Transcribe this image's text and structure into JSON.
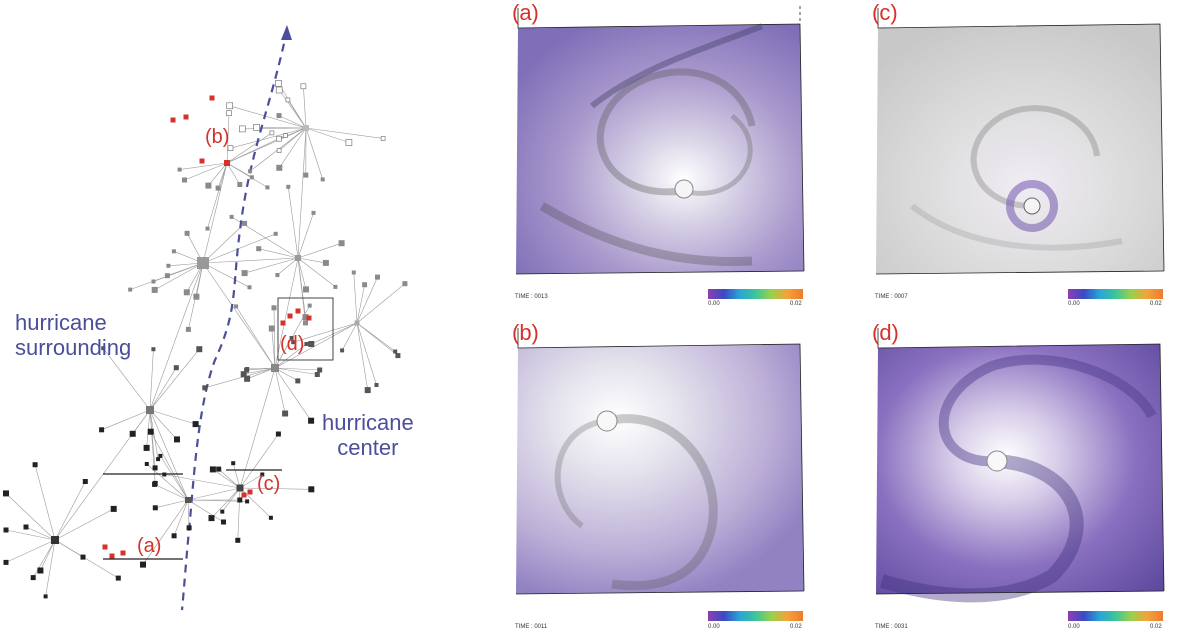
{
  "graph": {
    "labels": {
      "surrounding_line1": "hurricane",
      "surrounding_line2": "surrounding",
      "center_line1": "hurricane",
      "center_line2": "center"
    },
    "node_tags": {
      "a": "(a)",
      "b": "(b)",
      "c": "(c)",
      "d": "(d)"
    }
  },
  "panels": [
    {
      "tag": "(a)",
      "time": "TIME : 0013",
      "cbar_min": "0.00",
      "cbar_max": "0.02"
    },
    {
      "tag": "(c)",
      "time": "TIME : 0007",
      "cbar_min": "0.00",
      "cbar_max": "0.02"
    },
    {
      "tag": "(b)",
      "time": "TIME : 0011",
      "cbar_min": "0.00",
      "cbar_max": "0.02"
    },
    {
      "tag": "(d)",
      "time": "TIME : 0031",
      "cbar_min": "0.00",
      "cbar_max": "0.02"
    }
  ],
  "colors": {
    "highlight": "#d6322b",
    "label_blue": "#4b4f9a",
    "purple": "#7b63b3"
  }
}
